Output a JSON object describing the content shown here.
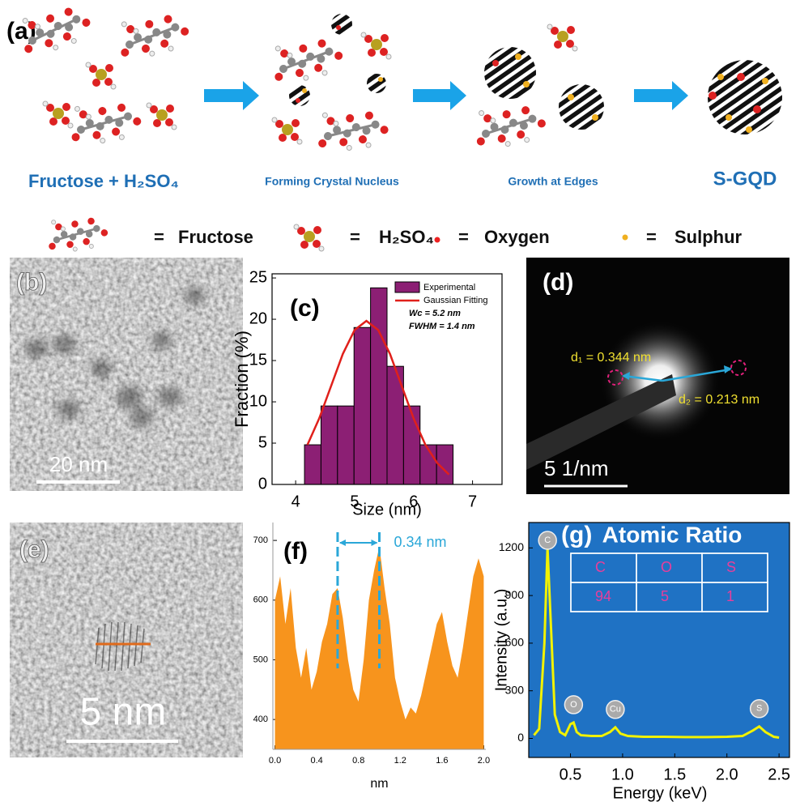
{
  "schematic": {
    "panel_label": "(a)",
    "steps": [
      "Fructose + H₂SO₄",
      "Forming Crystal Nucleus",
      "Growth at Edges",
      "S-GQD"
    ],
    "equals": "=",
    "legend": [
      "Fructose",
      "H₂SO₄",
      "Oxygen",
      "Sulphur"
    ]
  },
  "micrographs": {
    "b": {
      "panel_label": "(b)",
      "scale_bar": "20 nm"
    },
    "d": {
      "panel_label": "(d)",
      "scale_bar": "5 1/nm",
      "d1": "d₁ = 0.344 nm",
      "d2": "d₂ = 0.213 nm"
    },
    "e": {
      "panel_label": "(e)",
      "scale_bar": "5 nm"
    }
  },
  "chart_data": [
    {
      "type": "histogram",
      "panel_label": "(c)",
      "xlabel": "Size (nm)",
      "ylabel": "Fraction (%)",
      "name": "Experimental",
      "color": "#8c1f74",
      "bins": [
        4.15,
        4.43,
        4.71,
        4.99,
        5.27,
        5.55,
        5.83,
        6.11,
        6.39,
        6.67
      ],
      "values": [
        4.8,
        9.5,
        9.5,
        19,
        23.8,
        14.3,
        9.5,
        4.8,
        4.8
      ],
      "series": [
        {
          "name": "Gaussian Fitting",
          "color": "#e0201b",
          "x": [
            4.2,
            4.4,
            4.6,
            4.8,
            5.0,
            5.2,
            5.4,
            5.6,
            5.8,
            6.0,
            6.2,
            6.4,
            6.6
          ],
          "values": [
            4.8,
            8.0,
            11.9,
            15.8,
            18.7,
            19.8,
            18.7,
            15.8,
            11.9,
            8.0,
            4.8,
            2.6,
            1.2
          ]
        }
      ],
      "annotations": [
        "Wc = 5.2 nm",
        "FWHM = 1.4 nm"
      ],
      "xlim": [
        3.6,
        7.5
      ],
      "ylim": [
        0,
        25.5
      ],
      "xticks": [
        4,
        5,
        6,
        7
      ],
      "yticks": [
        0,
        5,
        10,
        15,
        20,
        25
      ]
    },
    {
      "type": "area",
      "panel_label": "(f)",
      "xlabel": "nm",
      "color": "#f7941d",
      "x": [
        0,
        0.05,
        0.1,
        0.15,
        0.2,
        0.25,
        0.3,
        0.35,
        0.4,
        0.45,
        0.5,
        0.55,
        0.6,
        0.65,
        0.7,
        0.75,
        0.8,
        0.85,
        0.9,
        0.95,
        1.0,
        1.05,
        1.1,
        1.15,
        1.2,
        1.25,
        1.3,
        1.35,
        1.4,
        1.45,
        1.5,
        1.55,
        1.6,
        1.65,
        1.7,
        1.75,
        1.8,
        1.85,
        1.9,
        1.95,
        2.0
      ],
      "values": [
        600,
        640,
        560,
        620,
        520,
        470,
        520,
        450,
        480,
        530,
        560,
        610,
        620,
        570,
        500,
        450,
        430,
        500,
        600,
        650,
        690,
        620,
        560,
        470,
        430,
        400,
        420,
        410,
        440,
        480,
        520,
        560,
        580,
        530,
        490,
        470,
        520,
        580,
        640,
        670,
        640
      ],
      "reference_lines": [
        0.6,
        1.0
      ],
      "reference_color": "#2aa7d8",
      "annotation": "0.34 nm",
      "xlim": [
        -0.02,
        2.02
      ],
      "ylim": [
        350,
        730
      ],
      "xticks": [
        {
          "value": 0,
          "label": "0.0"
        },
        0.4,
        0.8,
        1.2,
        1.6,
        {
          "value": 2,
          "label": "2.0"
        }
      ],
      "yticks": [
        400,
        500,
        600,
        700
      ]
    },
    {
      "type": "line",
      "panel_label": "(g)",
      "xlabel": "Energy (keV)",
      "ylabel": "Intensity (a.u.)",
      "color": "#f2f200",
      "background": "#1f72c4",
      "x": [
        0.15,
        0.2,
        0.25,
        0.28,
        0.3,
        0.35,
        0.4,
        0.45,
        0.5,
        0.53,
        0.56,
        0.6,
        0.7,
        0.8,
        0.88,
        0.93,
        0.98,
        1.05,
        1.2,
        1.4,
        1.6,
        1.8,
        2.0,
        2.15,
        2.25,
        2.31,
        2.37,
        2.45,
        2.5
      ],
      "values": [
        20,
        60,
        600,
        1200,
        900,
        150,
        40,
        20,
        90,
        100,
        40,
        20,
        15,
        15,
        40,
        70,
        30,
        15,
        10,
        10,
        8,
        8,
        10,
        15,
        50,
        75,
        40,
        10,
        5
      ],
      "peaks": [
        {
          "label": "C",
          "x": 0.28
        },
        {
          "label": "O",
          "x": 0.53
        },
        {
          "label": "Cu",
          "x": 0.93
        },
        {
          "label": "S",
          "x": 2.31
        }
      ],
      "table": {
        "title": "Atomic Ratio",
        "header": [
          "C",
          "O",
          "S"
        ],
        "rows": [
          [
            94,
            5,
            1
          ]
        ]
      },
      "xlim": [
        0.1,
        2.6
      ],
      "ylim": [
        -120,
        1360
      ],
      "xticks": [
        0.5,
        {
          "value": 1,
          "label": "1.0"
        },
        1.5,
        {
          "value": 2,
          "label": "2.0"
        },
        2.5
      ],
      "yticks": [
        0,
        300,
        600,
        900,
        1200
      ]
    }
  ]
}
